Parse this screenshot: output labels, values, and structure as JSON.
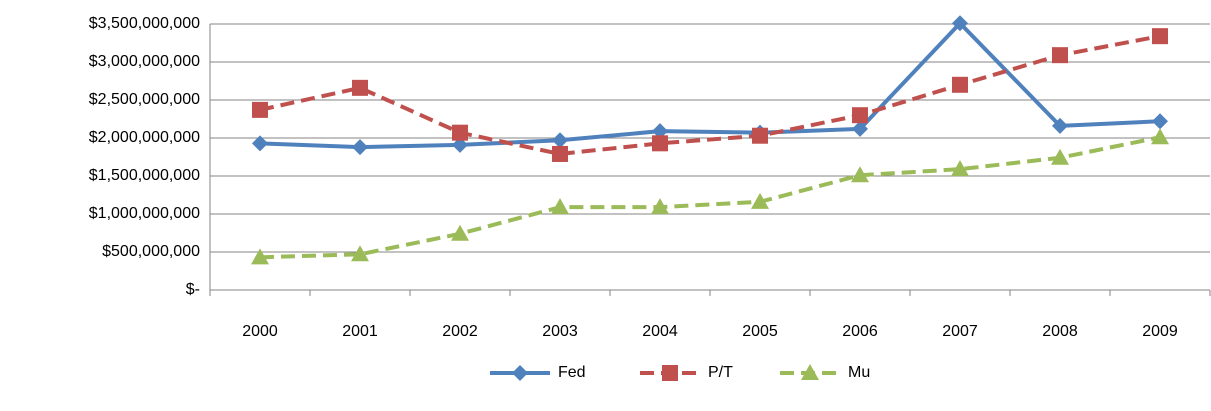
{
  "chart_data": {
    "type": "line",
    "categories": [
      "2000",
      "2001",
      "2002",
      "2003",
      "2004",
      "2005",
      "2006",
      "2007",
      "2008",
      "2009"
    ],
    "series": [
      {
        "name": "Fed",
        "color": "#4f81bd",
        "marker": "diamond",
        "dash": "solid",
        "values": [
          1930000000,
          1880000000,
          1910000000,
          1970000000,
          2090000000,
          2070000000,
          2120000000,
          3510000000,
          2160000000,
          2220000000
        ]
      },
      {
        "name": "P/T",
        "color": "#c0504d",
        "marker": "square",
        "dash": "dashed",
        "values": [
          2370000000,
          2660000000,
          2070000000,
          1790000000,
          1930000000,
          2030000000,
          2300000000,
          2700000000,
          3090000000,
          3340000000
        ]
      },
      {
        "name": "Mu",
        "color": "#9bbb59",
        "marker": "triangle",
        "dash": "dashed",
        "values": [
          430000000,
          470000000,
          740000000,
          1090000000,
          1090000000,
          1160000000,
          1510000000,
          1590000000,
          1740000000,
          2010000000
        ]
      }
    ],
    "ylim": [
      0,
      3500000000
    ],
    "yticks": [
      {
        "value": 0,
        "label": "$-"
      },
      {
        "value": 500000000,
        "label": "$500,000,000"
      },
      {
        "value": 1000000000,
        "label": "$1,000,000,000"
      },
      {
        "value": 1500000000,
        "label": "$1,500,000,000"
      },
      {
        "value": 2000000000,
        "label": "$2,000,000,000"
      },
      {
        "value": 2500000000,
        "label": "$2,500,000,000"
      },
      {
        "value": 3000000000,
        "label": "$3,000,000,000"
      },
      {
        "value": 3500000000,
        "label": "$3,500,000,000"
      }
    ],
    "grid": true,
    "legend": "bottom"
  }
}
